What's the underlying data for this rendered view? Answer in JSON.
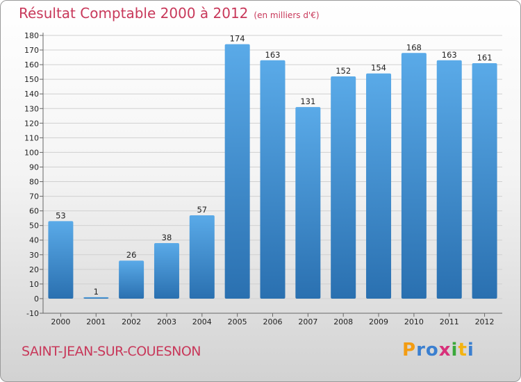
{
  "header": {
    "title": "Résultat Comptable 2000 à 2012",
    "subtitle": "(en milliers d'€)"
  },
  "footer": {
    "city": "SAINT-JEAN-SUR-COUESNON",
    "logo": [
      "P",
      "r",
      "o",
      "x",
      "i",
      "t",
      "i"
    ],
    "logo_colors": [
      "#f39c12",
      "#3a7fd0",
      "#3a7fd0",
      "#d8307a",
      "#3aa83a",
      "#f3b312",
      "#3a7fd0"
    ]
  },
  "colors": {
    "bar_top": "#5aaae8",
    "bar_bottom": "#2a70b0",
    "grid": "#d0d0d0",
    "axis": "#666666"
  },
  "chart_data": {
    "type": "bar",
    "categories": [
      "2000",
      "2001",
      "2002",
      "2003",
      "2004",
      "2005",
      "2006",
      "2007",
      "2008",
      "2009",
      "2010",
      "2011",
      "2012"
    ],
    "values": [
      53,
      1,
      26,
      38,
      57,
      174,
      163,
      131,
      152,
      154,
      168,
      163,
      161
    ],
    "ylim": [
      -10,
      180
    ],
    "yticks": [
      -10,
      0,
      10,
      20,
      30,
      40,
      50,
      60,
      70,
      80,
      90,
      100,
      110,
      120,
      130,
      140,
      150,
      160,
      170,
      180
    ],
    "xlabel": "",
    "ylabel": "",
    "grid": true
  }
}
